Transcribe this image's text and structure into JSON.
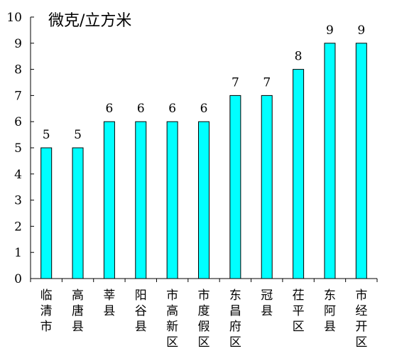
{
  "chart_data": {
    "type": "bar",
    "unit": "微克/立方米",
    "categories": [
      "临清市",
      "高唐县",
      "莘县",
      "阳谷县",
      "市高新区",
      "市度假区",
      "东昌府区",
      "冠县",
      "茌平区",
      "东阿县",
      "市经开区"
    ],
    "values": [
      5,
      5,
      6,
      6,
      6,
      6,
      7,
      7,
      8,
      9,
      9
    ],
    "ylim": [
      0,
      10
    ],
    "yticks": [
      0,
      1,
      2,
      3,
      4,
      5,
      6,
      7,
      8,
      9,
      10
    ],
    "bar_color": "#00ffff",
    "bar_stroke": "#000000",
    "grid": false,
    "legend": "none"
  }
}
